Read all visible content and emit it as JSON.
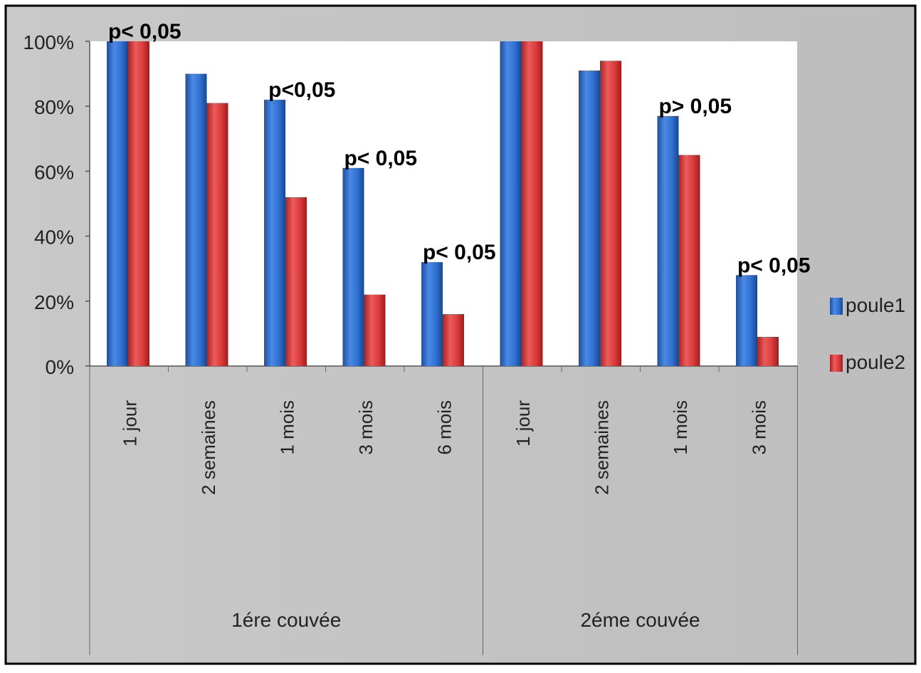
{
  "chart_data": {
    "type": "bar",
    "groups": [
      {
        "label": "1ére couvée",
        "categories": [
          "1 jour",
          "2 semaines",
          "1 mois",
          "3 mois",
          "6 mois"
        ]
      },
      {
        "label": "2éme couvée",
        "categories": [
          "1 jour",
          "2 semaines",
          "1 mois",
          "3 mois"
        ]
      }
    ],
    "categories": [
      "1 jour",
      "2 semaines",
      "1 mois",
      "3 mois",
      "6 mois",
      "1 jour",
      "2 semaines",
      "1 mois",
      "3 mois"
    ],
    "series": [
      {
        "name": "poule1",
        "color": "#2f6fd0",
        "values": [
          100,
          90,
          82,
          61,
          32,
          100,
          91,
          77,
          28
        ]
      },
      {
        "name": "poule2",
        "color": "#d93a3a",
        "values": [
          100,
          81,
          52,
          22,
          16,
          100,
          94,
          65,
          9
        ]
      }
    ],
    "annotations": [
      {
        "category_index": 0,
        "text": "p< 0,05"
      },
      {
        "category_index": 2,
        "text": "p<0,05"
      },
      {
        "category_index": 3,
        "text": "p< 0,05"
      },
      {
        "category_index": 4,
        "text": "p< 0,05"
      },
      {
        "category_index": 7,
        "text": "p> 0,05"
      },
      {
        "category_index": 8,
        "text": "p< 0,05"
      }
    ],
    "yticks": [
      "0%",
      "20%",
      "40%",
      "60%",
      "80%",
      "100%"
    ],
    "ylim": [
      0,
      100
    ],
    "grid": false,
    "legend_position": "right"
  }
}
